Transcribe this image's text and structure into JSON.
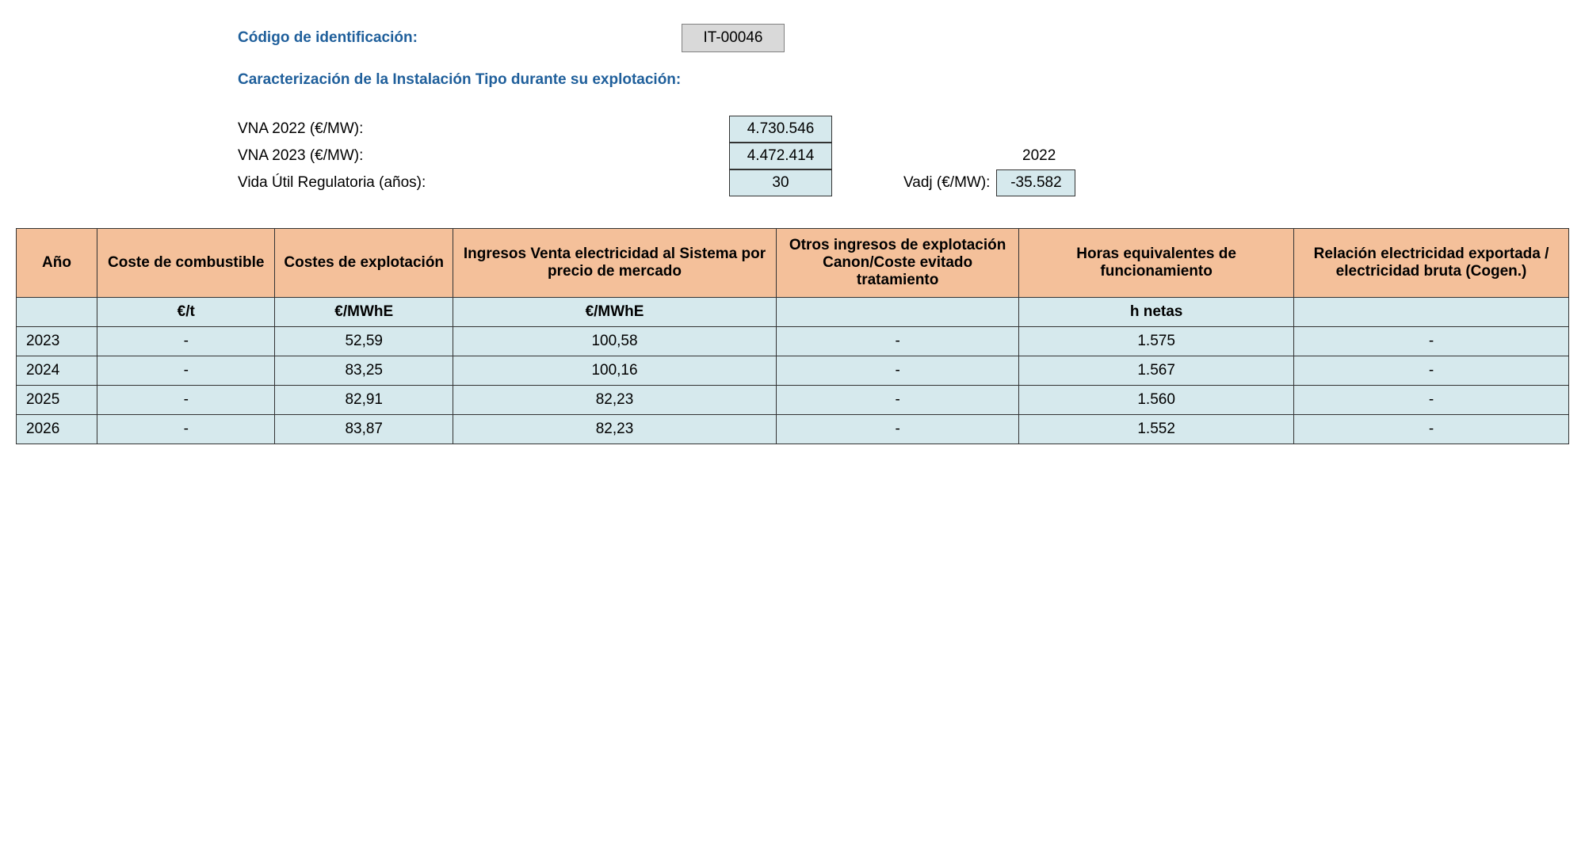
{
  "header": {
    "codigo_label": "Código de identificación:",
    "codigo_value": "IT-00046",
    "subtitle": "Caracterización de la Instalación Tipo durante su explotación:",
    "vna2022_label": "VNA 2022 (€/MW):",
    "vna2022_value": "4.730.546",
    "vna2023_label": "VNA 2023 (€/MW):",
    "vna2023_value": "4.472.414",
    "year_ref": "2022",
    "vida_label": "Vida Útil Regulatoria (años):",
    "vida_value": "30",
    "vadj_label": "Vadj (€/MW):",
    "vadj_value": "-35.582"
  },
  "table": {
    "columns": [
      "Año",
      "Coste de combustible",
      "Costes de explotación",
      "Ingresos Venta electricidad al Sistema por precio de mercado",
      "Otros ingresos de explotación Canon/Coste evitado tratamiento",
      "Horas equivalentes de funcionamiento",
      "Relación electricidad exportada / electricidad bruta\n(Cogen.)"
    ],
    "units": [
      "",
      "€/t",
      "€/MWhE",
      "€/MWhE",
      "",
      "h netas",
      ""
    ],
    "rows": [
      [
        "2023",
        "-",
        "52,59",
        "100,58",
        "-",
        "1.575",
        "-"
      ],
      [
        "2024",
        "-",
        "83,25",
        "100,16",
        "-",
        "1.567",
        "-"
      ],
      [
        "2025",
        "-",
        "82,91",
        "82,23",
        "-",
        "1.560",
        "-"
      ],
      [
        "2026",
        "-",
        "83,87",
        "82,23",
        "-",
        "1.552",
        "-"
      ]
    ],
    "header_bg": "#f4c09a",
    "cell_bg": "#d6e9ed",
    "border_color": "#333333"
  }
}
